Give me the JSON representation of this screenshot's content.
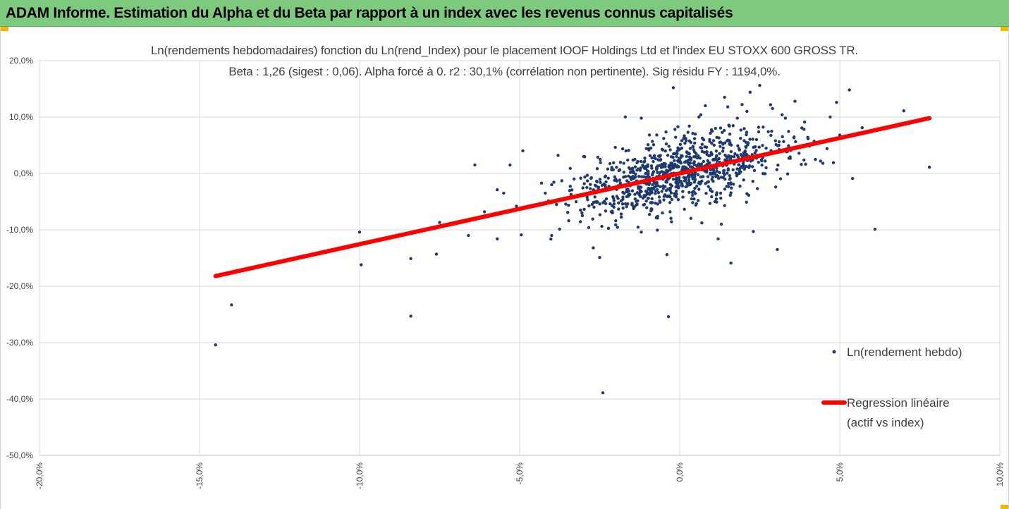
{
  "banner": {
    "title": "ADAM Informe. Estimation du Alpha et du Beta par rapport à un index avec les revenus connus capitalisés",
    "color": "#7dc97d"
  },
  "chart_data": {
    "type": "scatter",
    "title": "Ln(rendements hebdomadaires) fonction du Ln(rend_Index) pour le placement IOOF Holdings Ltd et l'index EU STOXX 600 GROSS TR.",
    "subtitle": "Beta : 1,26 (sigest : 0,06). Alpha forcé à 0. r2 : 30,1% (corrélation non pertinente). Sig résidu FY : 1194,0%.",
    "xlabel": "",
    "ylabel": "",
    "xlim": [
      -20,
      10
    ],
    "ylim": [
      -50,
      20
    ],
    "x_ticks": [
      -20,
      -15,
      -10,
      -5,
      0,
      5,
      10
    ],
    "x_tick_labels": [
      "-20,0%",
      "-15,0%",
      "-10,0%",
      "-5,0%",
      "0,0%",
      "5,0%",
      "10,0%"
    ],
    "y_ticks": [
      20,
      10,
      0,
      -10,
      -20,
      -30,
      -40,
      -50
    ],
    "y_tick_labels": [
      "20,0%",
      "10,0%",
      "0,0%",
      "-10,0%",
      "-20,0%",
      "-30,0%",
      "-40,0%",
      "-50,0%"
    ],
    "grid": true,
    "legend_position": "right",
    "series": [
      {
        "name": "Ln(rendement hebdo)",
        "kind": "scatter",
        "color": "#1f3a6e",
        "points": [
          [
            -14.5,
            -30.4
          ],
          [
            -14.0,
            -23.3
          ],
          [
            -14.0,
            -17.6
          ],
          [
            -10.0,
            -10.4
          ],
          [
            -9.95,
            -16.2
          ],
          [
            -8.4,
            -15.1
          ],
          [
            -8.4,
            -25.3
          ],
          [
            -8.3,
            -10.5
          ],
          [
            -7.6,
            -14.3
          ],
          [
            -7.5,
            -8.7
          ],
          [
            -6.6,
            -11.0
          ],
          [
            -6.4,
            1.5
          ],
          [
            -6.4,
            -8.0
          ],
          [
            -6.1,
            -6.8
          ],
          [
            -5.7,
            -11.6
          ],
          [
            -5.7,
            -2.9
          ],
          [
            -5.5,
            -3.5
          ],
          [
            -5.3,
            1.5
          ],
          [
            -5.1,
            -5.8
          ],
          [
            -4.95,
            -10.9
          ],
          [
            -4.9,
            4.0
          ],
          [
            -4.0,
            -11.0
          ],
          [
            -3.8,
            3.2
          ],
          [
            -3.0,
            3.0
          ],
          [
            -2.7,
            -13.2
          ],
          [
            -2.5,
            -14.9
          ],
          [
            -2.4,
            -38.9
          ],
          [
            -1.7,
            10.0
          ],
          [
            -1.2,
            9.8
          ],
          [
            -1.2,
            -10.4
          ],
          [
            -0.4,
            -14.4
          ],
          [
            -0.35,
            -25.4
          ],
          [
            -0.2,
            15.2
          ],
          [
            0.3,
            8.4
          ],
          [
            0.6,
            10.0
          ],
          [
            0.8,
            12.0
          ],
          [
            1.0,
            7.5
          ],
          [
            1.2,
            -11.6
          ],
          [
            1.3,
            -9.0
          ],
          [
            1.4,
            13.5
          ],
          [
            1.5,
            11.8
          ],
          [
            1.6,
            -15.9
          ],
          [
            1.8,
            9.8
          ],
          [
            2.1,
            11.0
          ],
          [
            2.2,
            14.4
          ],
          [
            2.3,
            -10.3
          ],
          [
            2.5,
            15.6
          ],
          [
            2.9,
            11.5
          ],
          [
            3.05,
            -13.5
          ],
          [
            3.2,
            10.4
          ],
          [
            3.3,
            9.8
          ],
          [
            3.6,
            12.8
          ],
          [
            3.9,
            9.1
          ],
          [
            4.0,
            6.4
          ],
          [
            4.2,
            5.7
          ],
          [
            4.4,
            2.2
          ],
          [
            4.6,
            4.4
          ],
          [
            4.7,
            10.0
          ],
          [
            4.8,
            1.9
          ],
          [
            4.9,
            12.6
          ],
          [
            5.0,
            6.8
          ],
          [
            5.3,
            14.8
          ],
          [
            5.4,
            -0.9
          ],
          [
            5.7,
            8.1
          ],
          [
            6.1,
            -9.9
          ],
          [
            7.0,
            11.1
          ],
          [
            7.0,
            8.9
          ],
          [
            7.8,
            1.1
          ],
          [
            -4.2,
            -3.5
          ],
          [
            -4.0,
            -2.0
          ],
          [
            -3.6,
            -4.5
          ],
          [
            -3.3,
            -1.0
          ],
          [
            -3.1,
            -6.5
          ],
          [
            -2.9,
            -2.5
          ],
          [
            -2.6,
            -5.0
          ],
          [
            -2.3,
            -1.5
          ],
          [
            -2.1,
            -7.0
          ],
          [
            -1.9,
            0.5
          ],
          [
            -1.6,
            -3.8
          ],
          [
            -1.4,
            2.5
          ],
          [
            -1.1,
            -5.5
          ],
          [
            -0.9,
            4.5
          ],
          [
            -0.7,
            -2.2
          ],
          [
            -0.5,
            6.2
          ],
          [
            -0.3,
            -6.8
          ],
          [
            -0.1,
            3.0
          ],
          [
            0.1,
            -4.2
          ],
          [
            0.35,
            5.5
          ],
          [
            0.6,
            -2.8
          ],
          [
            0.85,
            3.8
          ],
          [
            1.1,
            -5.0
          ],
          [
            1.35,
            5.2
          ],
          [
            1.6,
            -1.9
          ],
          [
            1.85,
            4.4
          ],
          [
            2.1,
            -3.6
          ],
          [
            2.4,
            6.0
          ],
          [
            2.7,
            1.0
          ],
          [
            3.0,
            -2.4
          ],
          [
            3.4,
            4.9
          ],
          [
            3.8,
            1.6
          ]
        ]
      },
      {
        "name": "Regression linéaire (actif vs index)",
        "label_lines": [
          "Regression linéaire",
          "(actif vs index)"
        ],
        "kind": "line",
        "color": "#ff0000",
        "x": [
          -14.5,
          7.8
        ],
        "y": [
          -18.2,
          9.8
        ]
      }
    ]
  }
}
